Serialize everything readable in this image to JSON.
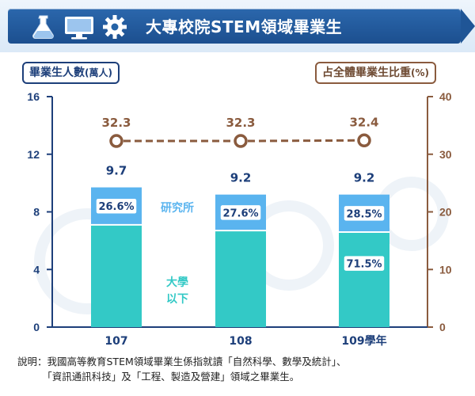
{
  "header": {
    "title": "大專校院STEM領域畢業生",
    "icons": [
      "flask-icon",
      "monitor-icon",
      "gear-icon"
    ]
  },
  "left_axis_title": {
    "text": "畢業生人數",
    "unit": "(萬人)"
  },
  "right_axis_title": {
    "text": "占全體畢業生比重",
    "unit": "(%)"
  },
  "footnote": "說明：我國高等教育STEM領域畢業生係指就讀「自然科學、數學及統計」、\n　　　「資訊通訊科技」及「工程、製造及營建」領域之畢業生。",
  "colors": {
    "university": "#33c9c6",
    "graduate": "#5ab4ef",
    "share_line": "#8a5b3e",
    "left_axis": "#1d3f7a",
    "right_axis": "#8a5b3e",
    "university_label": "#33c9c6",
    "graduate_label": "#5ab4ef"
  },
  "chart_data": {
    "type": "bar",
    "stacked": true,
    "categories": [
      "107",
      "108",
      "109學年"
    ],
    "series": [
      {
        "name": "大學以下",
        "values": [
          7.1,
          6.7,
          6.6
        ],
        "share_labels": [
          "",
          "",
          "71.5%"
        ]
      },
      {
        "name": "研究所",
        "values": [
          2.6,
          2.5,
          2.6
        ],
        "share_labels": [
          "26.6%",
          "27.6%",
          "28.5%"
        ]
      }
    ],
    "totals": [
      9.7,
      9.2,
      9.2
    ],
    "line_series": {
      "axis": "right",
      "values": [
        32.3,
        32.3,
        32.4
      ]
    },
    "y_left": {
      "range": [
        0,
        16
      ],
      "ticks": [
        0,
        4,
        8,
        12,
        16
      ]
    },
    "y_right": {
      "range": [
        0,
        40
      ],
      "ticks": [
        0,
        10,
        20,
        30,
        40
      ]
    },
    "legend_inline": true,
    "grid": false
  }
}
